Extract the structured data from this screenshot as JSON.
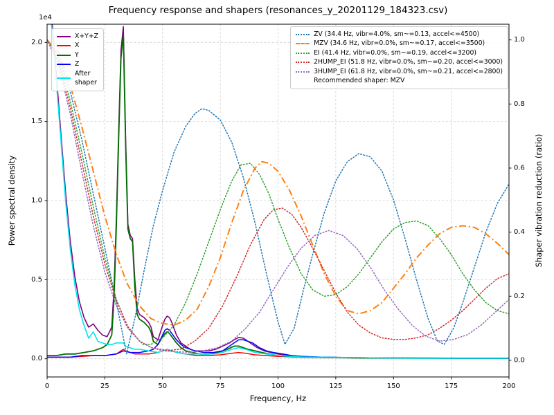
{
  "chart_data": {
    "type": "line",
    "title": "Frequency response and shapers (resonances_y_20201129_184323.csv)",
    "xlabel": "Frequency, Hz",
    "ylabel_left": "Power spectral density",
    "ylabel_right": "Shaper vibration reduction (ratio)",
    "offset_text": "1e4",
    "grid": true,
    "legend_left_position": "upper left",
    "legend_right_position": "upper right",
    "legend_right_note": "Recommended shaper: MZV",
    "xlim": [
      0,
      200
    ],
    "ylim_left": [
      -0.115,
      2.115
    ],
    "ylim_right": [
      -0.052,
      1.049
    ],
    "x_ticks": {
      "values": [
        0,
        25,
        50,
        75,
        100,
        125,
        150,
        175,
        200
      ],
      "labels": [
        "0",
        "25",
        "50",
        "75",
        "100",
        "125",
        "150",
        "175",
        "200"
      ]
    },
    "y_ticks_left": {
      "values": [
        0.0,
        0.5,
        1.0,
        1.5,
        2.0
      ],
      "labels": [
        "0.0",
        "0.5",
        "1.0",
        "1.5",
        "2.0"
      ]
    },
    "y_ticks_right": {
      "values": [
        0.0,
        0.2,
        0.4,
        0.6,
        0.8,
        1.0
      ],
      "labels": [
        "0.0",
        "0.2",
        "0.4",
        "0.6",
        "0.8",
        "1.0"
      ]
    },
    "psd_unit_multiplier": 10000,
    "psd_series": [
      {
        "name": "xyz",
        "label": "X+Y+Z",
        "color": "#800080",
        "style": "solid",
        "width": 1.6,
        "axis": "left",
        "x": [
          0,
          2,
          4,
          6,
          8,
          10,
          12,
          14,
          16,
          18,
          20,
          22,
          24,
          26,
          28,
          29,
          30,
          31,
          32,
          33,
          34,
          35,
          36,
          37,
          38,
          39,
          40,
          42,
          44,
          45,
          46,
          48,
          50,
          51,
          52,
          53,
          54,
          55,
          56,
          58,
          60,
          62,
          64,
          66,
          68,
          70,
          73,
          76,
          79,
          81,
          83,
          85,
          87,
          89,
          91,
          94,
          97,
          100,
          103,
          106,
          110,
          115,
          120,
          130,
          140,
          160,
          180,
          200
        ],
        "y": [
          2.35,
          2.15,
          1.8,
          1.42,
          1.05,
          0.75,
          0.52,
          0.36,
          0.26,
          0.2,
          0.22,
          0.18,
          0.15,
          0.14,
          0.2,
          0.45,
          0.9,
          1.45,
          1.95,
          2.1,
          1.4,
          0.85,
          0.78,
          0.76,
          0.5,
          0.32,
          0.28,
          0.26,
          0.23,
          0.2,
          0.14,
          0.12,
          0.21,
          0.25,
          0.27,
          0.26,
          0.23,
          0.19,
          0.15,
          0.1,
          0.08,
          0.06,
          0.05,
          0.05,
          0.05,
          0.05,
          0.06,
          0.08,
          0.1,
          0.12,
          0.135,
          0.13,
          0.11,
          0.09,
          0.07,
          0.05,
          0.04,
          0.03,
          0.025,
          0.02,
          0.015,
          0.012,
          0.01,
          0.008,
          0.006,
          0.005,
          0.004,
          0.004
        ]
      },
      {
        "name": "x",
        "label": "X",
        "color": "#ff0000",
        "style": "solid",
        "width": 1.5,
        "axis": "left",
        "x": [
          0,
          5,
          10,
          15,
          20,
          25,
          30,
          32,
          33,
          34,
          36,
          38,
          40,
          44,
          48,
          50,
          52,
          54,
          56,
          60,
          65,
          70,
          75,
          80,
          83,
          86,
          90,
          95,
          100,
          110,
          120,
          140,
          160,
          180,
          200
        ],
        "y": [
          0.01,
          0.01,
          0.01,
          0.015,
          0.02,
          0.02,
          0.03,
          0.05,
          0.06,
          0.05,
          0.04,
          0.03,
          0.03,
          0.03,
          0.04,
          0.05,
          0.06,
          0.05,
          0.04,
          0.03,
          0.02,
          0.02,
          0.025,
          0.035,
          0.04,
          0.035,
          0.025,
          0.02,
          0.015,
          0.01,
          0.008,
          0.005,
          0.004,
          0.003,
          0.003
        ]
      },
      {
        "name": "y",
        "label": "Y",
        "color": "#007000",
        "style": "solid",
        "width": 1.8,
        "axis": "left",
        "x": [
          0,
          4,
          8,
          12,
          16,
          20,
          24,
          26,
          28,
          29,
          30,
          31,
          32,
          33,
          34,
          35,
          36,
          37,
          38,
          39,
          40,
          42,
          44,
          45,
          46,
          48,
          50,
          51,
          52,
          53,
          54,
          56,
          58,
          60,
          63,
          66,
          70,
          74,
          78,
          81,
          83,
          85,
          87,
          90,
          93,
          96,
          100,
          105,
          110,
          120,
          140,
          160,
          180,
          200
        ],
        "y": [
          0.02,
          0.02,
          0.03,
          0.03,
          0.04,
          0.05,
          0.07,
          0.09,
          0.15,
          0.38,
          0.85,
          1.4,
          1.9,
          2.05,
          1.35,
          0.82,
          0.76,
          0.74,
          0.45,
          0.28,
          0.25,
          0.23,
          0.2,
          0.17,
          0.11,
          0.09,
          0.14,
          0.16,
          0.17,
          0.16,
          0.14,
          0.1,
          0.07,
          0.05,
          0.04,
          0.03,
          0.03,
          0.04,
          0.06,
          0.08,
          0.08,
          0.07,
          0.06,
          0.05,
          0.04,
          0.03,
          0.02,
          0.015,
          0.01,
          0.008,
          0.005,
          0.004,
          0.003,
          0.003
        ]
      },
      {
        "name": "z",
        "label": "Z",
        "color": "#0000ff",
        "style": "solid",
        "width": 1.5,
        "axis": "left",
        "x": [
          0,
          5,
          10,
          15,
          20,
          25,
          30,
          33,
          36,
          40,
          44,
          46,
          48,
          50,
          51,
          52,
          53,
          54,
          56,
          58,
          60,
          64,
          68,
          72,
          76,
          79,
          81,
          83,
          85,
          87,
          89,
          92,
          95,
          98,
          102,
          106,
          110,
          120,
          140,
          160,
          180,
          200
        ],
        "y": [
          0.01,
          0.01,
          0.01,
          0.02,
          0.02,
          0.02,
          0.03,
          0.05,
          0.04,
          0.04,
          0.05,
          0.06,
          0.09,
          0.15,
          0.18,
          0.19,
          0.18,
          0.16,
          0.12,
          0.09,
          0.07,
          0.05,
          0.04,
          0.04,
          0.05,
          0.08,
          0.1,
          0.12,
          0.12,
          0.11,
          0.1,
          0.07,
          0.05,
          0.04,
          0.03,
          0.02,
          0.015,
          0.01,
          0.006,
          0.004,
          0.003,
          0.003
        ]
      },
      {
        "name": "after-shaper",
        "label": "After\nshaper",
        "color": "#00e5ee",
        "style": "solid",
        "width": 1.6,
        "axis": "left",
        "x": [
          0,
          2,
          4,
          6,
          8,
          10,
          12,
          14,
          16,
          18,
          20,
          22,
          24,
          26,
          28,
          30,
          32,
          33,
          34,
          36,
          38,
          40,
          44,
          48,
          50,
          52,
          54,
          56,
          60,
          64,
          68,
          72,
          76,
          80,
          83,
          86,
          90,
          95,
          100,
          110,
          120,
          140,
          160,
          180,
          200
        ],
        "y": [
          2.3,
          2.1,
          1.75,
          1.38,
          1.0,
          0.7,
          0.47,
          0.31,
          0.21,
          0.13,
          0.17,
          0.11,
          0.1,
          0.09,
          0.09,
          0.1,
          0.1,
          0.1,
          0.08,
          0.07,
          0.06,
          0.06,
          0.05,
          0.04,
          0.05,
          0.06,
          0.05,
          0.04,
          0.03,
          0.03,
          0.03,
          0.03,
          0.04,
          0.06,
          0.07,
          0.06,
          0.04,
          0.03,
          0.02,
          0.012,
          0.01,
          0.006,
          0.004,
          0.003,
          0.003
        ]
      }
    ],
    "shaper_series": [
      {
        "name": "zv",
        "label": "ZV (34.4 Hz, vibr=4.0%, sm~=0.13, accel<=4500)",
        "color": "#1f77b4",
        "style": "dotted",
        "width": 1.5,
        "axis": "right",
        "x": [
          0,
          5,
          10,
          15,
          20,
          25,
          30,
          34.4,
          38,
          42,
          46,
          50,
          55,
          60,
          64,
          67,
          70,
          75,
          80,
          85,
          90,
          95,
          100,
          103,
          107,
          111,
          115,
          120,
          125,
          130,
          135,
          140,
          145,
          150,
          155,
          160,
          165,
          169,
          172,
          176,
          180,
          185,
          190,
          195,
          200
        ],
        "y": [
          1.0,
          0.95,
          0.84,
          0.69,
          0.52,
          0.35,
          0.18,
          0.02,
          0.13,
          0.28,
          0.42,
          0.53,
          0.65,
          0.73,
          0.77,
          0.785,
          0.78,
          0.75,
          0.68,
          0.57,
          0.43,
          0.27,
          0.12,
          0.05,
          0.1,
          0.22,
          0.33,
          0.46,
          0.56,
          0.62,
          0.645,
          0.635,
          0.59,
          0.5,
          0.38,
          0.25,
          0.13,
          0.06,
          0.05,
          0.1,
          0.18,
          0.29,
          0.4,
          0.49,
          0.55
        ]
      },
      {
        "name": "mzv",
        "label": "MZV (34.6 Hz, vibr=0.0%, sm~=0.17, accel<=3500)",
        "color": "#ff7f0e",
        "style": "dashdot",
        "width": 2,
        "axis": "right",
        "x": [
          0,
          5,
          10,
          15,
          20,
          25,
          30,
          34.6,
          40,
          45,
          50,
          55,
          60,
          65,
          70,
          75,
          80,
          85,
          90,
          93,
          96,
          100,
          105,
          110,
          115,
          120,
          125,
          130,
          135,
          140,
          145,
          150,
          155,
          160,
          165,
          170,
          175,
          180,
          185,
          190,
          195,
          200
        ],
        "y": [
          1.0,
          0.96,
          0.86,
          0.73,
          0.59,
          0.45,
          0.33,
          0.24,
          0.17,
          0.13,
          0.115,
          0.11,
          0.125,
          0.16,
          0.23,
          0.32,
          0.43,
          0.53,
          0.6,
          0.62,
          0.615,
          0.59,
          0.53,
          0.45,
          0.36,
          0.27,
          0.2,
          0.155,
          0.145,
          0.155,
          0.18,
          0.225,
          0.27,
          0.32,
          0.36,
          0.395,
          0.415,
          0.42,
          0.415,
          0.395,
          0.365,
          0.33
        ]
      },
      {
        "name": "ei",
        "label": "EI (41.4 Hz, vibr=0.0%, sm~=0.19, accel<=3200)",
        "color": "#2ca02c",
        "style": "dotted",
        "width": 1.5,
        "axis": "right",
        "x": [
          0,
          5,
          10,
          15,
          20,
          25,
          30,
          35,
          41.4,
          45,
          50,
          55,
          60,
          65,
          70,
          75,
          80,
          84,
          88,
          92,
          96,
          100,
          105,
          110,
          115,
          120,
          125,
          130,
          135,
          140,
          145,
          150,
          155,
          160,
          165,
          170,
          175,
          180,
          185,
          190,
          195,
          200
        ],
        "y": [
          1.0,
          0.94,
          0.81,
          0.65,
          0.48,
          0.32,
          0.19,
          0.1,
          0.05,
          0.05,
          0.07,
          0.11,
          0.18,
          0.27,
          0.37,
          0.47,
          0.56,
          0.61,
          0.615,
          0.58,
          0.52,
          0.44,
          0.35,
          0.27,
          0.22,
          0.2,
          0.205,
          0.23,
          0.27,
          0.32,
          0.37,
          0.41,
          0.43,
          0.435,
          0.42,
          0.38,
          0.33,
          0.27,
          0.22,
          0.18,
          0.155,
          0.145
        ]
      },
      {
        "name": "2hump-ei",
        "label": "2HUMP_EI (51.8 Hz, vibr=0.0%, sm~=0.20, accel<=3000)",
        "color": "#d62728",
        "style": "dotted",
        "width": 1.5,
        "axis": "right",
        "x": [
          0,
          5,
          10,
          15,
          20,
          25,
          30,
          35,
          40,
          45,
          51.8,
          58,
          64,
          70,
          76,
          82,
          88,
          94,
          98,
          102,
          106,
          110,
          115,
          120,
          125,
          130,
          135,
          140,
          145,
          150,
          155,
          160,
          165,
          170,
          175,
          180,
          185,
          190,
          195,
          200
        ],
        "y": [
          1.0,
          0.93,
          0.79,
          0.62,
          0.45,
          0.3,
          0.185,
          0.105,
          0.06,
          0.04,
          0.03,
          0.035,
          0.06,
          0.1,
          0.17,
          0.26,
          0.36,
          0.44,
          0.47,
          0.475,
          0.455,
          0.415,
          0.35,
          0.28,
          0.21,
          0.15,
          0.11,
          0.085,
          0.07,
          0.065,
          0.065,
          0.07,
          0.08,
          0.1,
          0.125,
          0.155,
          0.19,
          0.225,
          0.255,
          0.27
        ]
      },
      {
        "name": "3hump-ei",
        "label": "3HUMP_EI (61.8 Hz, vibr=0.0%, sm~=0.21, accel<=2800)",
        "color": "#9467bd",
        "style": "dotted",
        "width": 1.5,
        "axis": "right",
        "x": [
          0,
          5,
          10,
          15,
          20,
          25,
          30,
          35,
          40,
          45,
          50,
          55,
          61.8,
          68,
          74,
          80,
          86,
          92,
          98,
          104,
          110,
          116,
          122,
          128,
          134,
          140,
          146,
          152,
          158,
          164,
          170,
          176,
          182,
          188,
          194,
          200
        ],
        "y": [
          1.0,
          0.92,
          0.77,
          0.59,
          0.42,
          0.275,
          0.17,
          0.1,
          0.06,
          0.04,
          0.03,
          0.027,
          0.025,
          0.03,
          0.04,
          0.06,
          0.1,
          0.15,
          0.22,
          0.29,
          0.35,
          0.39,
          0.405,
          0.39,
          0.35,
          0.29,
          0.22,
          0.16,
          0.11,
          0.075,
          0.06,
          0.065,
          0.08,
          0.11,
          0.15,
          0.19
        ]
      }
    ]
  }
}
